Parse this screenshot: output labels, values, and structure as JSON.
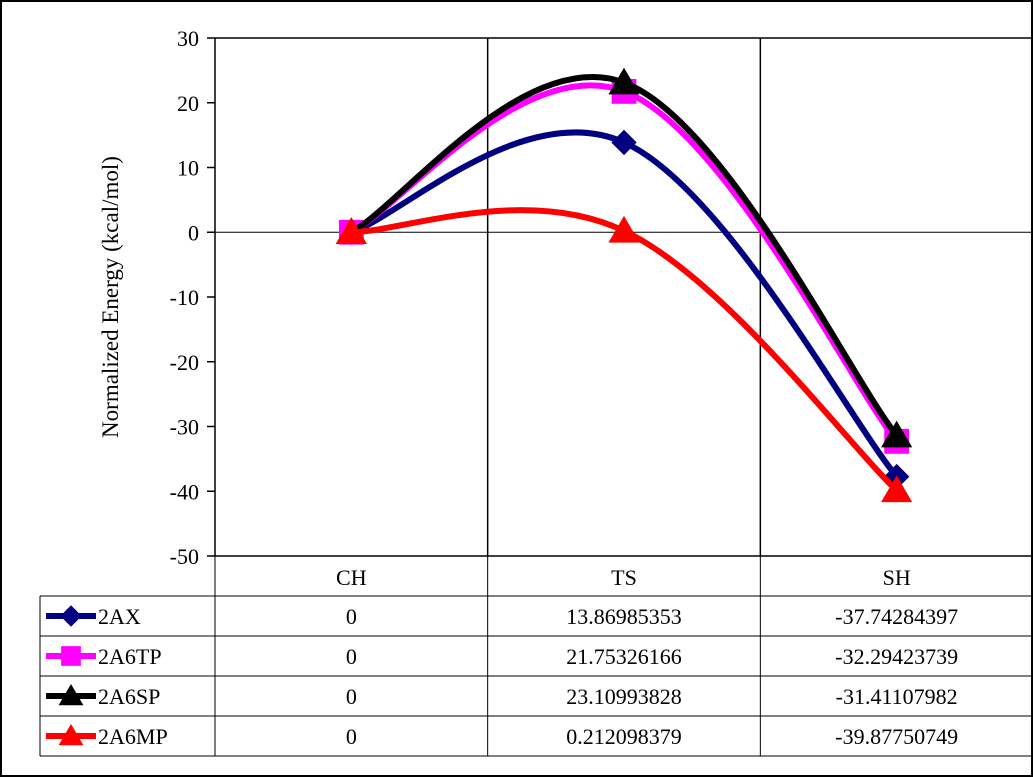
{
  "chart_data": {
    "type": "line",
    "ylabel": "Normalized Energy (kcal/mol)",
    "xlabel": "",
    "ylim": [
      -50,
      30
    ],
    "yticks": [
      30,
      20,
      10,
      0,
      -10,
      -20,
      -30,
      -40,
      -50
    ],
    "categories": [
      "CH",
      "TS",
      "SH"
    ],
    "series": [
      {
        "name": "2AX",
        "color": "#000080",
        "marker": "diamond",
        "values": [
          0,
          13.86985353,
          -37.74284397
        ],
        "labels": [
          "0",
          "13.86985353",
          "-37.74284397"
        ]
      },
      {
        "name": "2A6TP",
        "color": "#ff00ff",
        "marker": "square",
        "values": [
          0,
          21.75326166,
          -32.29423739
        ],
        "labels": [
          "0",
          "21.75326166",
          "-32.29423739"
        ]
      },
      {
        "name": "2A6SP",
        "color": "#000000",
        "marker": "triangle",
        "values": [
          0,
          23.10993828,
          -31.41107982
        ],
        "labels": [
          "0",
          "23.10993828",
          "-31.41107982"
        ]
      },
      {
        "name": "2A6MP",
        "color": "#ff0000",
        "marker": "triangle",
        "values": [
          0,
          0.212098379,
          -39.87750749
        ],
        "labels": [
          "0",
          "0.212098379",
          "-39.87750749"
        ]
      }
    ],
    "grid": "vertical category separators",
    "legend": "data table below plot"
  }
}
